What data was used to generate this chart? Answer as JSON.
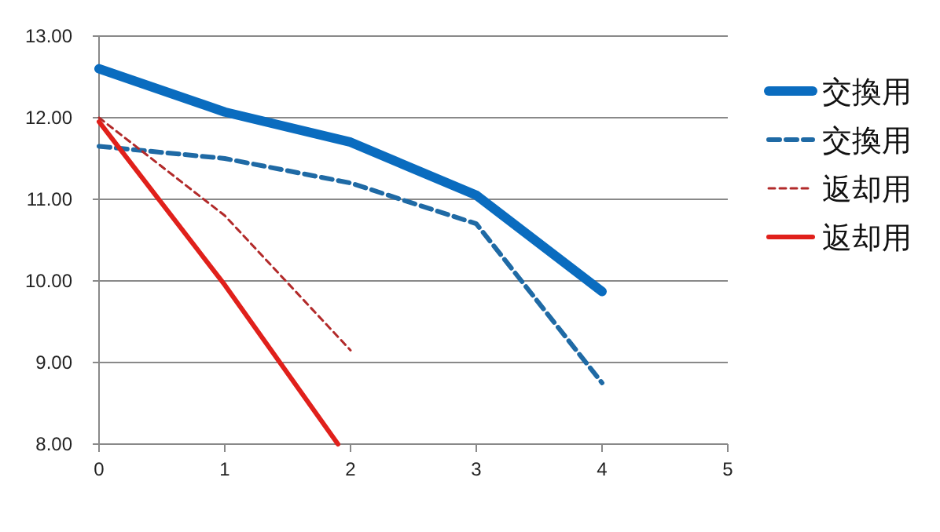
{
  "chart_data": {
    "type": "line",
    "xlim": [
      0,
      5
    ],
    "xticks": [
      0,
      1,
      2,
      3,
      4,
      5
    ],
    "ylim": [
      8,
      13
    ],
    "yticks": [
      {
        "value": 8,
        "label": "8.00"
      },
      {
        "value": 9,
        "label": "9.00"
      },
      {
        "value": 10,
        "label": "10.00"
      },
      {
        "value": 11,
        "label": "11.00"
      },
      {
        "value": 12,
        "label": "12.00"
      },
      {
        "value": 13,
        "label": "13.00"
      }
    ],
    "grid": "y",
    "legend": "right",
    "marker": "none",
    "series": [
      {
        "name": "交換用",
        "color": "#0a6cbf",
        "line_style": "solid",
        "x": [
          0,
          1,
          2,
          3,
          4
        ],
        "values": [
          12.6,
          12.07,
          11.7,
          11.05,
          9.87
        ]
      },
      {
        "name": "交換用",
        "color": "#1f6aa5",
        "line_style": "dashed",
        "x": [
          0,
          1,
          2,
          3,
          4
        ],
        "values": [
          11.65,
          11.5,
          11.2,
          10.7,
          8.75
        ]
      },
      {
        "name": "返却用",
        "color": "#b22a2a",
        "line_style": "dotted",
        "x": [
          0,
          1,
          2
        ],
        "values": [
          12.0,
          10.8,
          9.15
        ]
      },
      {
        "name": "返却用",
        "color": "#e0201b",
        "line_style": "solid",
        "x": [
          0,
          1,
          1.9
        ],
        "values": [
          11.95,
          9.95,
          8.0
        ]
      }
    ]
  }
}
